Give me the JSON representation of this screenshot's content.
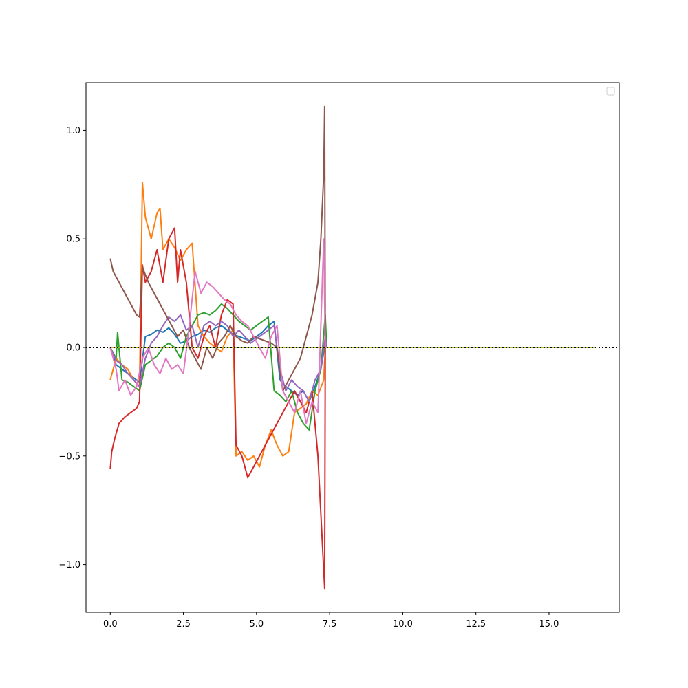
{
  "chart_data": {
    "type": "line",
    "title": "",
    "xlabel": "",
    "ylabel": "",
    "xlim": [
      -0.83,
      17.4
    ],
    "ylim": [
      -1.22,
      1.22
    ],
    "x_ticks": [
      0.0,
      2.5,
      5.0,
      7.5,
      10.0,
      12.5,
      15.0
    ],
    "x_tick_labels": [
      "0.0",
      "2.5",
      "5.0",
      "7.5",
      "10.0",
      "12.5",
      "15.0"
    ],
    "y_ticks": [
      -1.0,
      -0.5,
      0.0,
      0.5,
      1.0
    ],
    "y_tick_labels": [
      "−1.0",
      "−0.5",
      "0.0",
      "0.5",
      "1.0"
    ],
    "grid": false,
    "legend": {
      "placement": "top-right",
      "entries": []
    },
    "reference_lines": [
      {
        "orientation": "horizontal",
        "y": 0.0,
        "style": "dotted",
        "color": "#000000"
      }
    ],
    "series": [
      {
        "color": "#1f77b4",
        "x": [
          0,
          0.2,
          0.4,
          0.6,
          0.8,
          1.0,
          1.2,
          1.4,
          1.6,
          1.8,
          2.0,
          2.2,
          2.4,
          2.6,
          2.8,
          3.0,
          3.2,
          3.4,
          3.6,
          3.8,
          4.0,
          4.2,
          4.4,
          4.6,
          4.8,
          5.0,
          5.2,
          5.4,
          5.6,
          5.8,
          6.0,
          6.2,
          6.4,
          6.6,
          6.8,
          7.0,
          7.2,
          7.35,
          7.4,
          16.6
        ],
        "y": [
          0.0,
          -0.08,
          -0.1,
          -0.12,
          -0.14,
          -0.16,
          0.05,
          0.06,
          0.08,
          0.07,
          0.09,
          0.06,
          0.02,
          0.03,
          0.05,
          0.06,
          0.08,
          0.07,
          0.09,
          0.1,
          0.08,
          0.06,
          0.05,
          0.04,
          0.03,
          0.05,
          0.07,
          0.1,
          0.12,
          -0.15,
          -0.18,
          -0.2,
          -0.22,
          -0.2,
          -0.25,
          -0.18,
          -0.1,
          0.02,
          0.0,
          0.0
        ]
      },
      {
        "color": "#ff7f0e",
        "x": [
          0,
          0.2,
          0.4,
          0.6,
          0.8,
          1.0,
          1.1,
          1.2,
          1.4,
          1.6,
          1.7,
          1.8,
          2.0,
          2.2,
          2.4,
          2.6,
          2.8,
          3.0,
          3.2,
          3.4,
          3.6,
          3.8,
          4.0,
          4.2,
          4.3,
          4.5,
          4.7,
          4.9,
          5.1,
          5.3,
          5.5,
          5.7,
          5.9,
          6.1,
          6.3,
          6.5,
          6.7,
          6.9,
          7.1,
          7.3,
          7.35,
          7.4,
          16.6
        ],
        "y": [
          -0.15,
          -0.05,
          -0.08,
          -0.1,
          -0.15,
          -0.18,
          0.76,
          0.6,
          0.5,
          0.62,
          0.64,
          0.45,
          0.5,
          0.46,
          0.4,
          0.45,
          0.48,
          0.1,
          0.05,
          0.02,
          0.0,
          -0.02,
          0.05,
          0.08,
          -0.5,
          -0.48,
          -0.52,
          -0.5,
          -0.55,
          -0.45,
          -0.38,
          -0.45,
          -0.5,
          -0.48,
          -0.3,
          -0.28,
          -0.26,
          -0.2,
          -0.22,
          -0.15,
          0.0,
          0.0,
          0.0
        ]
      },
      {
        "color": "#2ca02c",
        "x": [
          0,
          0.2,
          0.25,
          0.4,
          0.6,
          0.8,
          1.0,
          1.2,
          1.4,
          1.6,
          1.8,
          2.0,
          2.2,
          2.4,
          2.6,
          2.8,
          3.0,
          3.2,
          3.4,
          3.6,
          3.8,
          4.0,
          4.2,
          4.4,
          4.6,
          4.8,
          5.0,
          5.2,
          5.4,
          5.6,
          5.8,
          6.0,
          6.2,
          6.4,
          6.6,
          6.8,
          7.0,
          7.2,
          7.35,
          7.4,
          16.6
        ],
        "y": [
          0.0,
          -0.05,
          0.07,
          -0.15,
          -0.16,
          -0.18,
          -0.2,
          -0.08,
          -0.06,
          -0.04,
          0.0,
          0.02,
          0.0,
          -0.05,
          0.05,
          0.1,
          0.15,
          0.16,
          0.15,
          0.17,
          0.2,
          0.18,
          0.15,
          0.12,
          0.1,
          0.08,
          0.1,
          0.12,
          0.14,
          -0.2,
          -0.22,
          -0.25,
          -0.2,
          -0.3,
          -0.35,
          -0.38,
          -0.2,
          -0.1,
          0.15,
          0.0,
          0.0
        ]
      },
      {
        "color": "#d62728",
        "x": [
          0,
          0.05,
          0.15,
          0.3,
          0.5,
          0.7,
          0.9,
          1.0,
          1.1,
          1.2,
          1.4,
          1.6,
          1.8,
          2.0,
          2.2,
          2.3,
          2.4,
          2.6,
          2.8,
          3.0,
          3.2,
          3.4,
          3.6,
          3.8,
          4.0,
          4.2,
          4.3,
          4.5,
          4.7,
          4.9,
          5.1,
          5.3,
          5.5,
          5.7,
          5.9,
          6.1,
          6.3,
          6.5,
          6.7,
          6.9,
          7.1,
          7.33,
          7.35,
          7.4,
          16.6
        ],
        "y": [
          -0.56,
          -0.48,
          -0.42,
          -0.35,
          -0.32,
          -0.3,
          -0.28,
          -0.25,
          0.38,
          0.3,
          0.35,
          0.45,
          0.3,
          0.5,
          0.55,
          0.3,
          0.45,
          0.3,
          0.0,
          -0.05,
          0.05,
          0.1,
          0.0,
          0.15,
          0.22,
          0.2,
          -0.45,
          -0.5,
          -0.6,
          -0.55,
          -0.5,
          -0.45,
          -0.4,
          -0.35,
          -0.3,
          -0.25,
          -0.2,
          -0.25,
          -0.3,
          -0.2,
          -0.5,
          -1.11,
          0.0,
          0.0,
          0.0
        ]
      },
      {
        "color": "#9467bd",
        "x": [
          0,
          0.2,
          0.4,
          0.6,
          0.8,
          1.0,
          1.2,
          1.4,
          1.6,
          1.8,
          2.0,
          2.2,
          2.4,
          2.6,
          2.8,
          3.0,
          3.2,
          3.4,
          3.6,
          3.8,
          4.0,
          4.2,
          4.4,
          4.6,
          4.8,
          5.0,
          5.2,
          5.4,
          5.6,
          5.8,
          6.0,
          6.2,
          6.4,
          6.6,
          6.8,
          7.0,
          7.2,
          7.35,
          7.4,
          16.6
        ],
        "y": [
          0.0,
          -0.06,
          -0.08,
          -0.12,
          -0.15,
          -0.18,
          -0.05,
          0.02,
          0.05,
          0.1,
          0.14,
          0.12,
          0.15,
          0.08,
          0.1,
          0.0,
          0.1,
          0.12,
          0.1,
          0.12,
          0.1,
          0.05,
          0.08,
          0.05,
          0.02,
          0.04,
          0.06,
          0.08,
          0.1,
          -0.1,
          -0.2,
          -0.15,
          -0.18,
          -0.2,
          -0.25,
          -0.15,
          -0.1,
          0.05,
          0.0,
          0.0
        ]
      },
      {
        "color": "#8c564b",
        "x": [
          0,
          0.1,
          0.3,
          0.5,
          0.7,
          0.9,
          1.0,
          1.1,
          1.3,
          1.5,
          1.7,
          1.9,
          2.1,
          2.3,
          2.5,
          2.7,
          2.9,
          3.1,
          3.3,
          3.5,
          3.7,
          3.9,
          4.1,
          4.3,
          4.5,
          4.7,
          4.9,
          5.1,
          5.3,
          5.5,
          5.7,
          5.9,
          6.1,
          6.3,
          6.5,
          6.7,
          6.9,
          7.1,
          7.2,
          7.3,
          7.33,
          7.35,
          7.4,
          16.6
        ],
        "y": [
          0.41,
          0.35,
          0.3,
          0.25,
          0.2,
          0.15,
          0.14,
          0.37,
          0.3,
          0.25,
          0.2,
          0.15,
          0.1,
          0.05,
          0.08,
          0.0,
          -0.05,
          -0.1,
          0.0,
          -0.05,
          0.02,
          0.05,
          0.1,
          0.05,
          0.03,
          0.02,
          0.05,
          0.04,
          0.03,
          0.02,
          0.0,
          -0.2,
          -0.15,
          -0.1,
          -0.05,
          0.05,
          0.15,
          0.3,
          0.5,
          0.8,
          1.11,
          0.0,
          0.0,
          0.0
        ]
      },
      {
        "color": "#e377c2",
        "x": [
          0,
          0.2,
          0.3,
          0.5,
          0.7,
          0.9,
          1.1,
          1.3,
          1.5,
          1.7,
          1.9,
          2.1,
          2.3,
          2.5,
          2.7,
          2.9,
          3.1,
          3.3,
          3.5,
          3.7,
          3.9,
          4.1,
          4.3,
          4.5,
          4.7,
          4.9,
          5.1,
          5.3,
          5.5,
          5.7,
          5.9,
          6.1,
          6.3,
          6.5,
          6.7,
          6.9,
          7.1,
          7.3,
          7.35,
          7.4,
          16.6
        ],
        "y": [
          0.0,
          -0.1,
          -0.2,
          -0.15,
          -0.22,
          -0.18,
          -0.05,
          0.0,
          -0.08,
          -0.12,
          -0.05,
          -0.1,
          -0.08,
          -0.12,
          0.1,
          0.35,
          0.25,
          0.3,
          0.28,
          0.25,
          0.22,
          0.2,
          0.15,
          0.12,
          0.1,
          0.05,
          0.0,
          -0.05,
          0.05,
          0.1,
          -0.2,
          -0.25,
          -0.3,
          -0.2,
          -0.35,
          -0.25,
          -0.3,
          0.5,
          0.0,
          0.0,
          0.0
        ]
      },
      {
        "color": "#bcbd22",
        "x": [
          0,
          16.6
        ],
        "y": [
          0.0,
          0.0
        ]
      }
    ]
  }
}
